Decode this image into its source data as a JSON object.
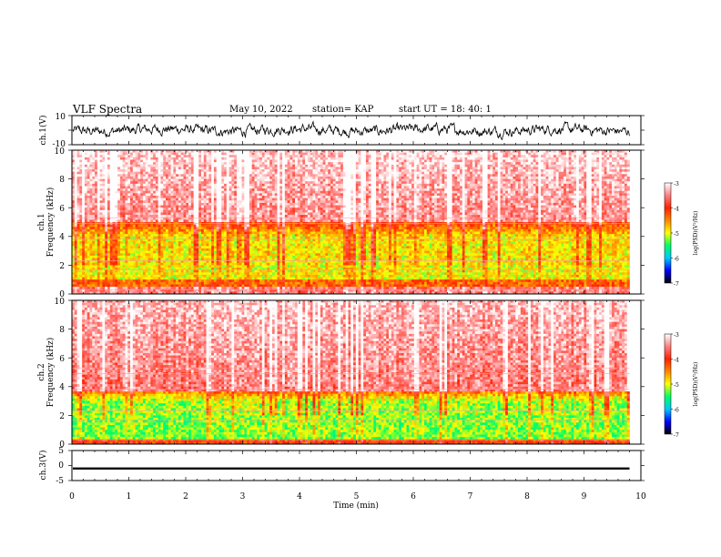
{
  "header": {
    "title": "VLF Spectra",
    "date": "May 10, 2022",
    "station": "station= KAP",
    "start": "start  UT  =   18: 40: 1"
  },
  "colors": {
    "background": "#ffffff",
    "trace": "#000000",
    "colormap": [
      "#000000",
      "#0000ff",
      "#00c8ff",
      "#00ff66",
      "#ffff00",
      "#ff8800",
      "#ff2200",
      "#ff8080",
      "#ffffff"
    ]
  },
  "chart_data": [
    {
      "type": "line",
      "panel": "ch1-waveform",
      "ylabel": "ch.1(V)",
      "ylim": [
        -10,
        10
      ],
      "yticks": [
        "10",
        "-10"
      ],
      "xlim": [
        0,
        10
      ],
      "x_extent_min": 9.8,
      "level": 0,
      "spread": 3,
      "grid": false
    },
    {
      "type": "heatmap",
      "panel": "ch1-spectrogram",
      "ylabel_line1": "ch.1",
      "ylabel_line2": "Frequency (kHz)",
      "ylim": [
        0,
        10
      ],
      "yticks": [
        "0",
        "2",
        "4",
        "6",
        "8",
        "10"
      ],
      "xlim": [
        0,
        10
      ],
      "x_extent_min": 9.8,
      "colorbar": {
        "label": "log(PSD)(V²/Hz)",
        "range": [
          -7,
          -3
        ],
        "ticks": [
          "-3",
          "-4",
          "-5",
          "-6",
          "-7"
        ]
      },
      "structure": "high PSD (red, about -3.5) above ~5 kHz; lower PSD (green, about -5) between ~1 and ~5 kHz; band near 0.2 kHz elevated"
    },
    {
      "type": "heatmap",
      "panel": "ch2-spectrogram",
      "ylabel_line1": "ch.2",
      "ylabel_line2": "Frequency (kHz)",
      "ylim": [
        0,
        10
      ],
      "yticks": [
        "0",
        "2",
        "4",
        "6",
        "8",
        "10"
      ],
      "xlim": [
        0,
        10
      ],
      "x_extent_min": 9.8,
      "colorbar": {
        "label": "log(PSD)(V²/Hz)",
        "range": [
          -7,
          -3
        ],
        "ticks": [
          "-3",
          "-4",
          "-5",
          "-6",
          "-7"
        ]
      },
      "structure": "high PSD (red) above ~4 kHz; green/cyan (about -5.3) between ~0.5 and ~3.5 kHz"
    },
    {
      "type": "line",
      "panel": "ch3-waveform",
      "ylabel": "ch.3(V)",
      "ylim": [
        -5,
        5
      ],
      "yticks": [
        "5",
        "0",
        "-5"
      ],
      "xlim": [
        0,
        10
      ],
      "x_extent_min": 9.8,
      "level": -1,
      "spread": 0.35,
      "grid": false
    }
  ],
  "xaxis": {
    "label": "Time (min)",
    "ticks": [
      "0",
      "1",
      "2",
      "3",
      "4",
      "5",
      "6",
      "7",
      "8",
      "9",
      "10"
    ],
    "range": [
      0,
      10
    ]
  }
}
